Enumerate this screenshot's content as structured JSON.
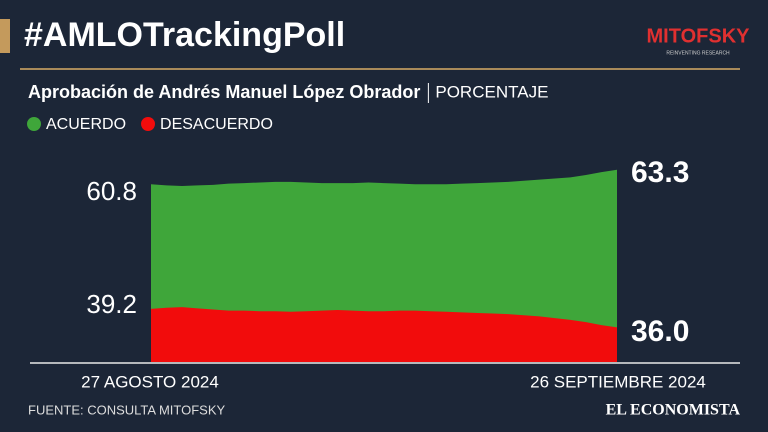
{
  "header": {
    "title": "#AMLOTrackingPoll",
    "logo": "MITOFSKY",
    "logo_tagline": "REINVENTING RESEARCH"
  },
  "chart_data": {
    "type": "area",
    "title": "Aprobación de Andrés Manuel López Obrador",
    "subtitle": "PORCENTAJE",
    "categories": [
      "27 AGOSTO 2024",
      null,
      null,
      null,
      null,
      null,
      null,
      null,
      null,
      null,
      null,
      null,
      null,
      null,
      null,
      null,
      null,
      null,
      null,
      null,
      null,
      null,
      null,
      null,
      null,
      null,
      null,
      null,
      null,
      null,
      "26 SEPTIEMBRE 2024"
    ],
    "series": [
      {
        "name": "ACUERDO",
        "color": "#3fa63a",
        "values": [
          60.8,
          60.6,
          60.5,
          60.6,
          60.7,
          60.9,
          61.0,
          61.1,
          61.2,
          61.2,
          61.1,
          61.0,
          61.0,
          61.0,
          61.1,
          61.0,
          60.9,
          60.8,
          60.8,
          60.8,
          60.9,
          61.0,
          61.1,
          61.2,
          61.4,
          61.6,
          61.8,
          62.0,
          62.4,
          62.9,
          63.3
        ],
        "value_labels": [
          "60.8",
          null,
          null,
          null,
          null,
          null,
          null,
          null,
          null,
          null,
          null,
          null,
          null,
          null,
          null,
          null,
          null,
          null,
          null,
          null,
          null,
          null,
          null,
          null,
          null,
          null,
          null,
          null,
          null,
          null,
          "63.3"
        ]
      },
      {
        "name": "DESACUERDO",
        "color": "#f20c0c",
        "values": [
          39.2,
          39.4,
          39.5,
          39.3,
          39.1,
          38.9,
          38.9,
          38.8,
          38.8,
          38.7,
          38.8,
          38.9,
          39.0,
          38.9,
          38.8,
          38.8,
          38.9,
          38.9,
          38.8,
          38.7,
          38.6,
          38.5,
          38.4,
          38.3,
          38.1,
          37.9,
          37.6,
          37.3,
          36.9,
          36.4,
          36.0
        ],
        "value_labels": [
          "39.2",
          null,
          null,
          null,
          null,
          null,
          null,
          null,
          null,
          null,
          null,
          null,
          null,
          null,
          null,
          null,
          null,
          null,
          null,
          null,
          null,
          null,
          null,
          null,
          null,
          null,
          null,
          null,
          null,
          null,
          "36.0"
        ]
      }
    ],
    "ylim": [
      30,
      65
    ]
  },
  "footer": {
    "source": "FUENTE: CONSULTA MITOFSKY",
    "brand": "EL ECONOMISTA"
  }
}
